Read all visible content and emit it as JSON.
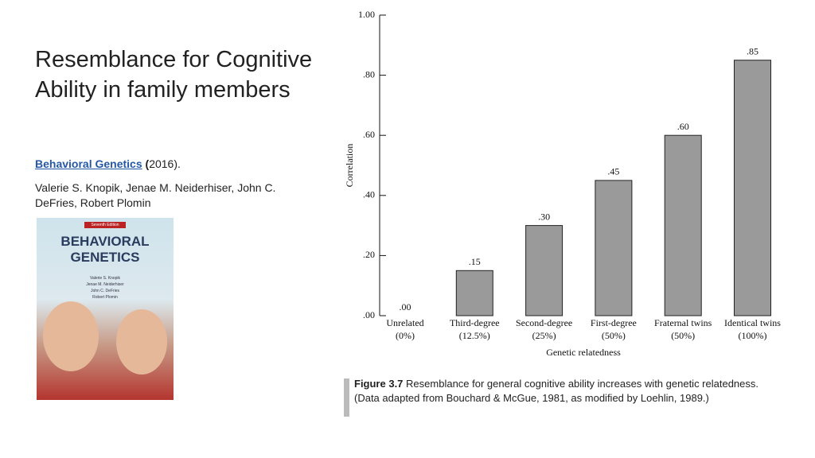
{
  "slide": {
    "title": "Resemblance for Cognitive Ability in family members",
    "source": {
      "link": "Behavioral Genetics",
      "open": "(",
      "year": "2016)."
    },
    "authors": "Valerie S. Knopik, Jenae M. Neiderhiser, John C. DeFries, Robert Plomin"
  },
  "cover": {
    "edition": "Seventh Edition",
    "title": "BEHAVIORAL GENETICS",
    "authors": [
      "Valerie S. Knopik",
      "Jenae M. Neiderhiser",
      "John C. DeFries",
      "Robert Plomin"
    ]
  },
  "chart_data": {
    "type": "bar",
    "categories": [
      "Unrelated",
      "Third-degree",
      "Second-degree",
      "First-degree",
      "Fraternal twins",
      "Identical twins"
    ],
    "category_notes": [
      "(0%)",
      "(12.5%)",
      "(25%)",
      "(50%)",
      "(50%)",
      "(100%)"
    ],
    "values": [
      0,
      0.15,
      0.3,
      0.45,
      0.6,
      0.85
    ],
    "value_labels": [
      ".00",
      ".15",
      ".30",
      ".45",
      ".60",
      ".85"
    ],
    "color": "#9a9a9a",
    "xlabel": "Genetic relatedness",
    "ylabel": "Correlation",
    "ylim": [
      0,
      1
    ],
    "yticks": [
      {
        "value": 0,
        "label": ".00"
      },
      {
        "value": 0.2,
        "label": ".20"
      },
      {
        "value": 0.4,
        "label": ".40"
      },
      {
        "value": 0.6,
        "label": ".60"
      },
      {
        "value": 0.8,
        "label": ".80"
      },
      {
        "value": 1,
        "label": "1.00"
      }
    ]
  },
  "caption": {
    "label": "Figure 3.7",
    "text": "Resemblance for general cognitive ability increases with genetic relatedness. (Data adapted from Bouchard & McGue, 1981, as modified by Loehlin, 1989.)"
  }
}
